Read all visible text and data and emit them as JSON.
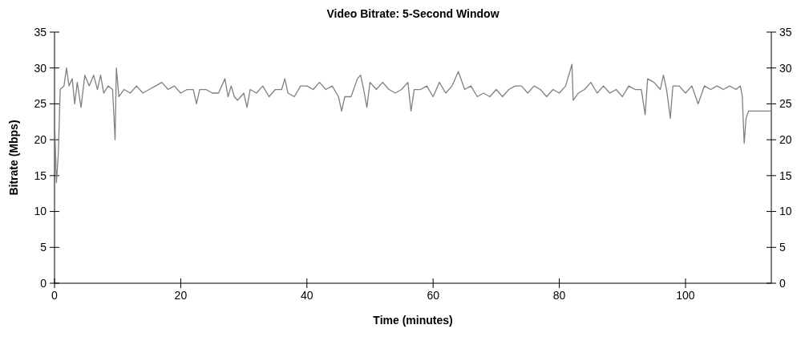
{
  "chart_data": {
    "type": "line",
    "title": "Video Bitrate: 5-Second Window",
    "xlabel": "Time (minutes)",
    "ylabel": "Bitrate (Mbps)",
    "xlim": [
      0,
      113.6
    ],
    "xticks": [
      0,
      20,
      40,
      60,
      80,
      100
    ],
    "ylim": [
      0,
      35
    ],
    "yticks": [
      0,
      5,
      10,
      15,
      20,
      25,
      30,
      35
    ],
    "y2lim": [
      0,
      35
    ],
    "y2ticks": [
      0,
      5,
      10,
      15,
      20,
      25,
      30,
      35
    ],
    "grid": false,
    "marker": "none",
    "line_style": "solid",
    "series": [
      {
        "color": "#808080",
        "x": [
          0,
          0.3,
          0.6,
          0.9,
          1.5,
          1.9,
          2.3,
          2.8,
          3.2,
          3.6,
          4.2,
          4.8,
          5.5,
          6.2,
          6.8,
          7.3,
          7.8,
          8.5,
          9.2,
          9.6,
          9.8,
          10.2,
          11,
          12,
          13,
          14,
          15,
          16,
          17,
          18,
          19,
          20,
          21,
          22,
          22.5,
          23,
          24,
          25,
          26,
          27,
          27.5,
          28,
          28.5,
          29,
          30,
          30.5,
          31,
          32,
          33,
          34,
          35,
          36,
          36.5,
          37,
          38,
          39,
          40,
          41,
          42,
          43,
          44,
          45,
          45.5,
          46,
          47,
          48,
          48.5,
          49,
          49.5,
          50,
          51,
          52,
          53,
          54,
          55,
          56,
          56.5,
          57,
          58,
          59,
          60,
          61,
          62,
          63,
          64,
          65,
          66,
          67,
          68,
          69,
          70,
          71,
          72,
          73,
          74,
          75,
          76,
          77,
          78,
          79,
          80,
          81,
          82,
          82.2,
          83,
          84,
          85,
          86,
          87,
          88,
          89,
          90,
          91,
          92,
          93,
          93.6,
          94,
          95,
          96,
          96.5,
          97,
          97.6,
          98,
          99,
          100,
          101,
          102,
          103,
          104,
          105,
          106,
          107,
          108,
          108.7,
          109,
          109.3,
          109.6,
          110,
          111,
          112,
          113,
          113.6
        ],
        "values": [
          23,
          14,
          18,
          27,
          27.5,
          30,
          27.5,
          28.5,
          25,
          28,
          24.5,
          29,
          27.5,
          29,
          27,
          29,
          26.5,
          27.5,
          27,
          20,
          30,
          26,
          27,
          26.5,
          27.5,
          26.5,
          27,
          27.5,
          28,
          27,
          27.5,
          26.5,
          27,
          27,
          25,
          27,
          27,
          26.5,
          26.5,
          28.5,
          26,
          27.5,
          26,
          25.5,
          26.5,
          24.5,
          27,
          26.5,
          27.5,
          26,
          27,
          27,
          28.5,
          26.5,
          26,
          27.5,
          27.5,
          27,
          28,
          27,
          27.5,
          26,
          24,
          26,
          26,
          28.5,
          29,
          27,
          24.5,
          28,
          27,
          28,
          27,
          26.5,
          27,
          28,
          24,
          27,
          27,
          27.5,
          26,
          28,
          26.5,
          27.5,
          29.5,
          27,
          27.5,
          26,
          26.5,
          26,
          27,
          26,
          27,
          27.5,
          27.5,
          26.5,
          27.5,
          27,
          26,
          27,
          26.5,
          27.5,
          30.5,
          25.5,
          26.5,
          27,
          28,
          26.5,
          27.5,
          26.5,
          27,
          26,
          27.5,
          27,
          27,
          23.5,
          28.5,
          28,
          27,
          29,
          27,
          23,
          27.5,
          27.5,
          26.5,
          27.5,
          25,
          27.5,
          27,
          27.5,
          27,
          27.5,
          27,
          27.5,
          26,
          19.5,
          23,
          24,
          24,
          24,
          24,
          24
        ]
      }
    ]
  }
}
